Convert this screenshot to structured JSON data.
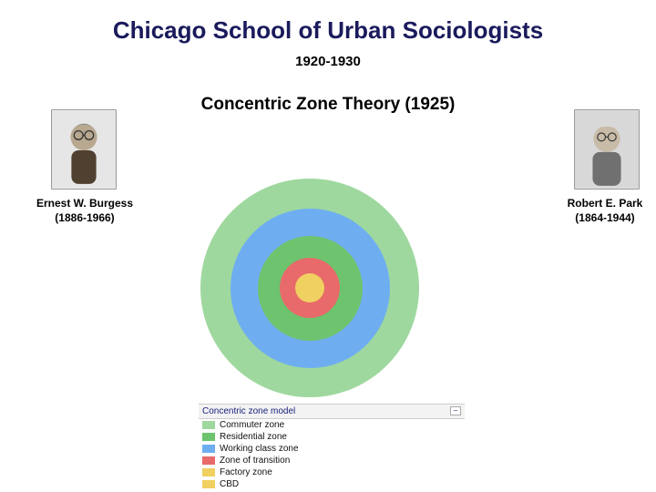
{
  "title": "Chicago School of Urban Sociologists",
  "years": "1920-1930",
  "subtitle": "Concentric Zone Theory (1925)",
  "people": {
    "left": {
      "name": "Ernest W. Burgess",
      "lifespan": "(1886-1966)"
    },
    "right": {
      "name": "Robert E. Park",
      "lifespan": "(1864-1944)"
    }
  },
  "zones": {
    "type": "concentric",
    "background": "#ffffff",
    "rings": [
      {
        "diameter": 240,
        "color": "#9fd89f"
      },
      {
        "diameter": 175,
        "color": "#6eaef0"
      },
      {
        "diameter": 115,
        "color": "#6ec36e"
      },
      {
        "diameter": 66,
        "color": "#e86a6a"
      },
      {
        "diameter": 32,
        "color": "#f0d060"
      }
    ]
  },
  "legend": {
    "title": "Concentric zone model",
    "title_color": "#1a237e",
    "title_bg": "#f3f3f3",
    "items": [
      {
        "color": "#9fd89f",
        "label": "Commuter zone"
      },
      {
        "color": "#6ec36e",
        "label": "Residential zone"
      },
      {
        "color": "#6eaef0",
        "label": "Working class zone"
      },
      {
        "color": "#e86a6a",
        "label": "Zone of transition"
      },
      {
        "color": "#f0d060",
        "label": "Factory zone"
      },
      {
        "color": "#f0d060",
        "label": "CBD"
      }
    ]
  }
}
